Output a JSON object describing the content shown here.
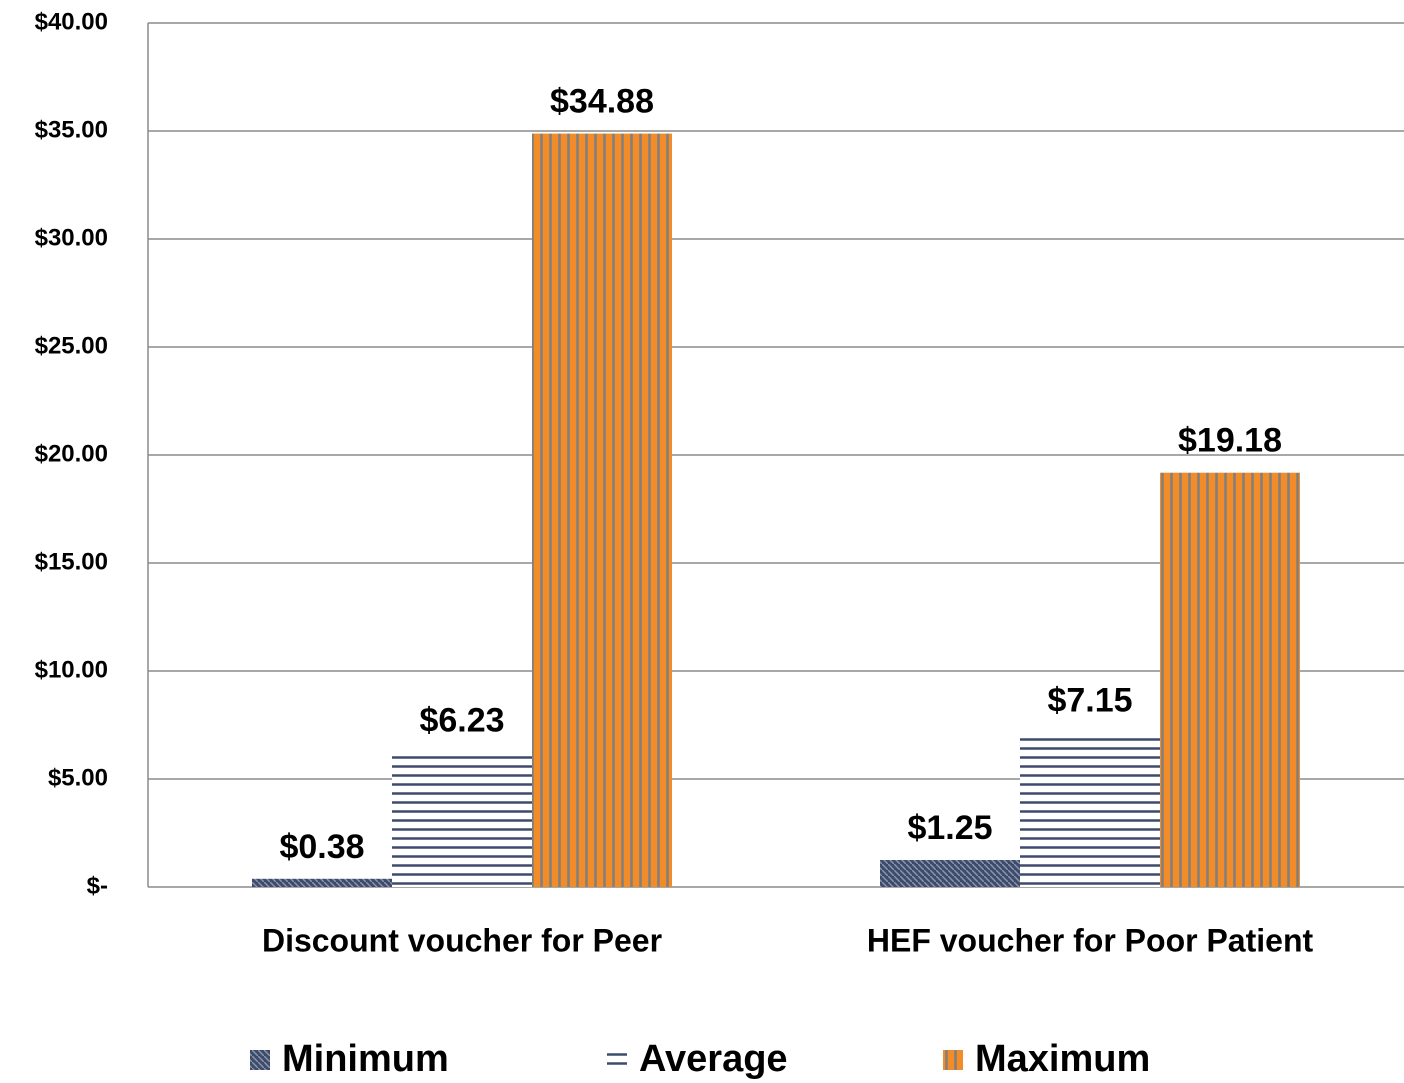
{
  "chart_data": {
    "type": "bar",
    "categories": [
      "Discount voucher for Peer",
      "HEF voucher for Poor Patient"
    ],
    "series": [
      {
        "name": "Minimum",
        "color": "#3e4b6c",
        "values": [
          0.38,
          1.25
        ],
        "value_labels": [
          "$0.38",
          "$1.25"
        ]
      },
      {
        "name": "Average",
        "color": "#3e4b6c",
        "values": [
          6.23,
          7.15
        ],
        "value_labels": [
          "$6.23",
          "$7.15"
        ]
      },
      {
        "name": "Maximum",
        "color": "#f28c28",
        "values": [
          34.88,
          19.18
        ],
        "value_labels": [
          "$34.88",
          "$19.18"
        ]
      }
    ],
    "ylim": [
      0,
      40
    ],
    "yticks": [
      {
        "value": 0,
        "label": "$-"
      },
      {
        "value": 5,
        "label": "$5.00"
      },
      {
        "value": 10,
        "label": "$10.00"
      },
      {
        "value": 15,
        "label": "$15.00"
      },
      {
        "value": 20,
        "label": "$20.00"
      },
      {
        "value": 25,
        "label": "$25.00"
      },
      {
        "value": 30,
        "label": "$30.00"
      },
      {
        "value": 35,
        "label": "$35.00"
      },
      {
        "value": 40,
        "label": "$40.00"
      }
    ],
    "grid": true,
    "legend": "bottom"
  }
}
